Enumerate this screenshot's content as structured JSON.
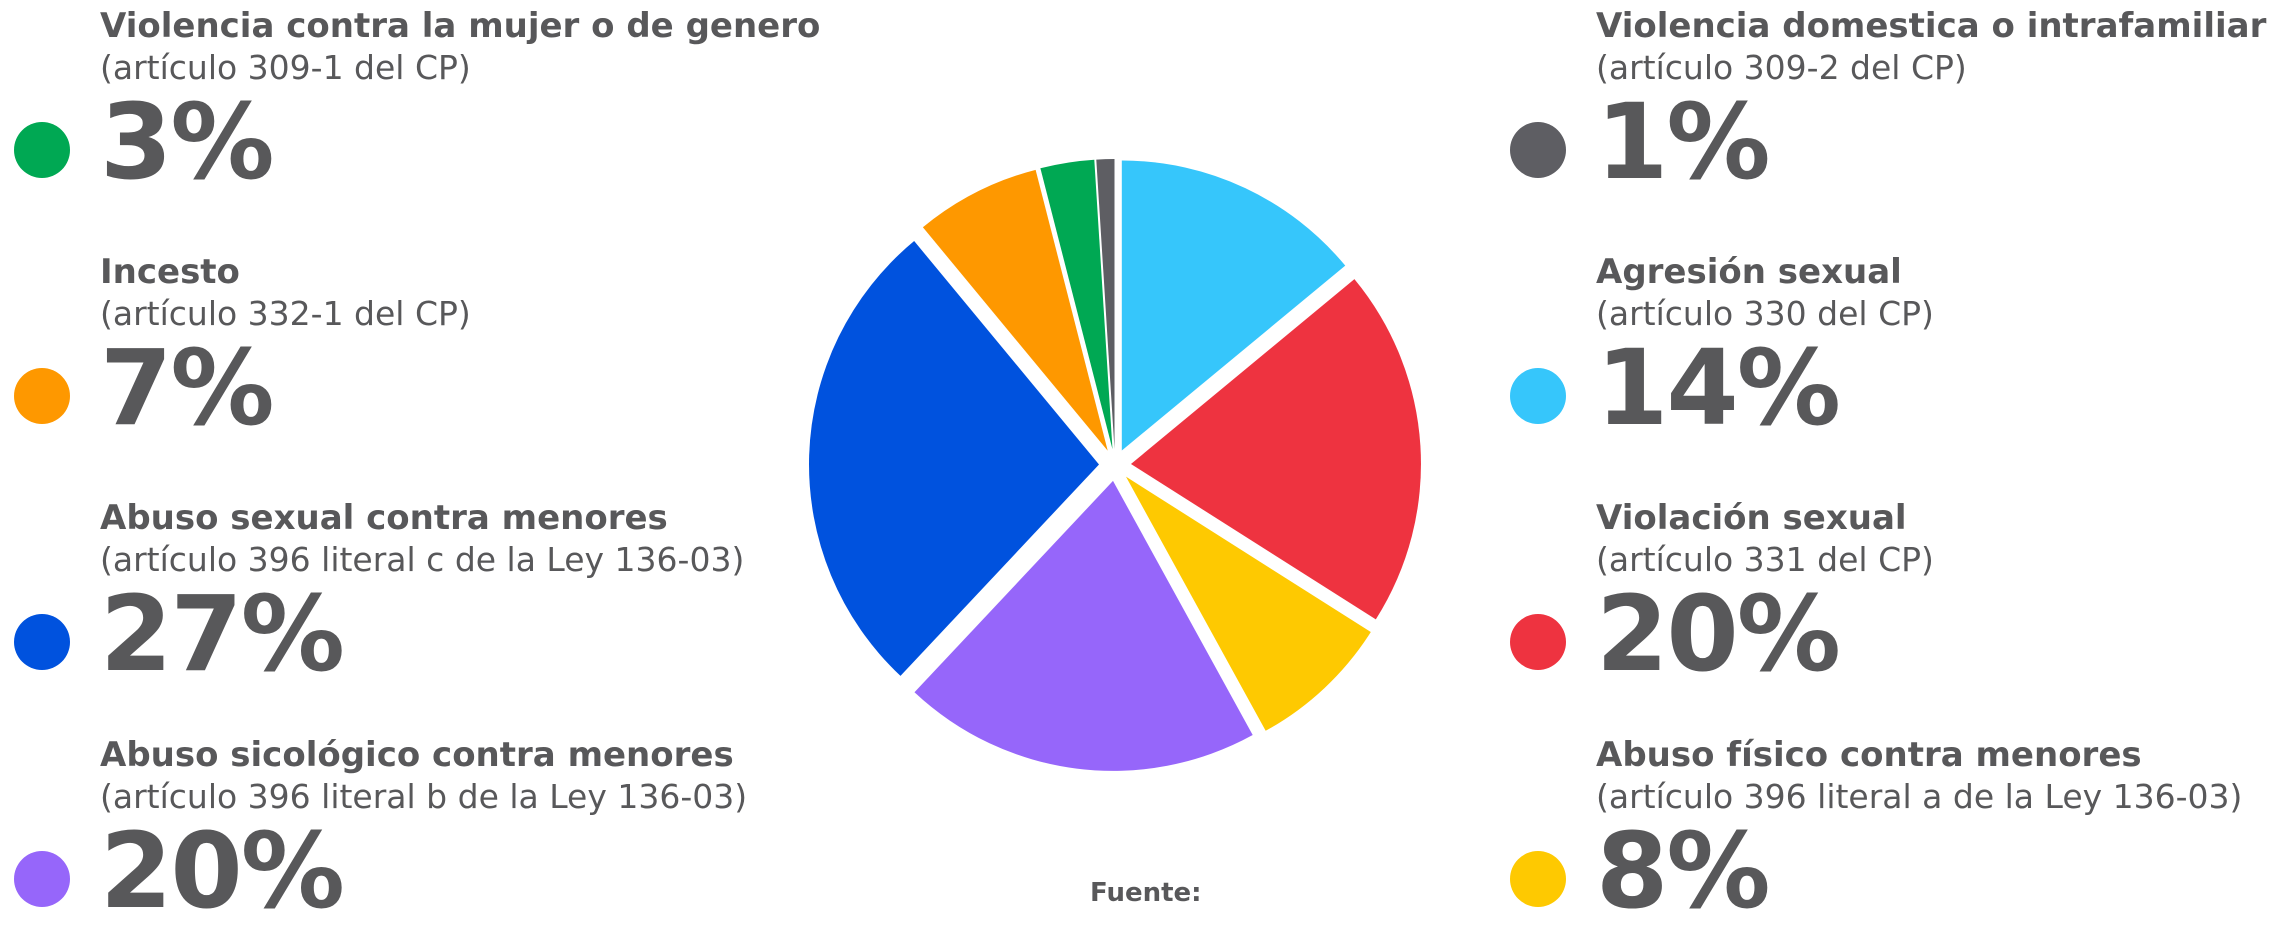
{
  "chart_data": {
    "type": "pie",
    "categories": [
      "Agresión sexual",
      "Violación sexual",
      "Abuso físico contra menores",
      "Abuso sicológico contra menores",
      "Abuso sexual contra menores",
      "Incesto",
      "Violencia contra la mujer o de genero",
      "Violencia domestica o intrafamiliar"
    ],
    "values": [
      14,
      20,
      8,
      20,
      27,
      7,
      3,
      1
    ],
    "colors": [
      "#36c6fb",
      "#ee3340",
      "#fec901",
      "#9666fa",
      "#0052de",
      "#fe9800",
      "#00a853",
      "#5e5e63"
    ]
  },
  "legend": {
    "left": [
      {
        "title": "Violencia contra la mujer o de genero",
        "subtitle": "(artículo 309-1 del CP)",
        "percent": "3%",
        "color": "#00a853"
      },
      {
        "title": "Incesto",
        "subtitle": "(artículo 332-1 del CP)",
        "percent": "7%",
        "color": "#fe9800"
      },
      {
        "title": "Abuso sexual contra menores",
        "subtitle": "(artículo 396 literal c de la Ley 136-03)",
        "percent": "27%",
        "color": "#0052de"
      },
      {
        "title": "Abuso sicológico contra menores",
        "subtitle": "(artículo 396 literal b de la Ley 136-03)",
        "percent": "20%",
        "color": "#9666fa"
      }
    ],
    "right": [
      {
        "title": "Violencia domestica o intrafamiliar",
        "subtitle": "(artículo 309-2 del CP)",
        "percent": "1%",
        "color": "#5e5e63"
      },
      {
        "title": "Agresión sexual",
        "subtitle": "(artículo 330 del CP)",
        "percent": "14%",
        "color": "#36c6fb"
      },
      {
        "title": "Violación sexual",
        "subtitle": "(artículo 331 del CP)",
        "percent": "20%",
        "color": "#ee3340"
      },
      {
        "title": "Abuso físico contra menores",
        "subtitle": "(artículo 396 literal a de la Ley 136-03)",
        "percent": "8%",
        "color": "#fec901"
      }
    ]
  },
  "source_label": "Fuente:"
}
